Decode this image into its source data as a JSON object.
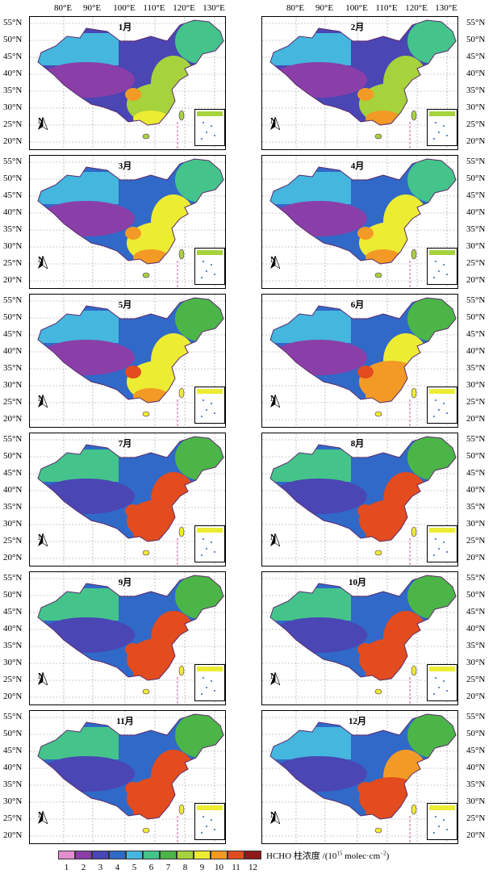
{
  "longitude_labels": [
    "80°E",
    "90°E",
    "100°E",
    "110°E",
    "120°E",
    "130°E"
  ],
  "latitude_labels": [
    "55°N",
    "50°N",
    "45°N",
    "40°N",
    "35°N",
    "30°N",
    "25°N",
    "20°N"
  ],
  "panels": [
    {
      "month": "1月",
      "intensity": 0.35
    },
    {
      "month": "2月",
      "intensity": 0.38
    },
    {
      "month": "3月",
      "intensity": 0.45
    },
    {
      "month": "4月",
      "intensity": 0.45
    },
    {
      "month": "5月",
      "intensity": 0.5
    },
    {
      "month": "6月",
      "intensity": 0.58
    },
    {
      "month": "7月",
      "intensity": 0.78
    },
    {
      "month": "8月",
      "intensity": 0.8
    },
    {
      "month": "9月",
      "intensity": 0.82
    },
    {
      "month": "10月",
      "intensity": 0.8
    },
    {
      "month": "11月",
      "intensity": 0.75
    },
    {
      "month": "12月",
      "intensity": 0.72
    }
  ],
  "north_label": "N",
  "legend": {
    "title": "HCHO 柱浓度 /(10",
    "title_sup": "15",
    "title_unit": " molec·cm",
    "title_sup2": "−2",
    "title_end": ")",
    "ticks": [
      "1",
      "2",
      "3",
      "4",
      "5",
      "6",
      "7",
      "8",
      "9",
      "10",
      "11",
      "12"
    ],
    "colors": [
      "#e38fcf",
      "#8a3fa8",
      "#4a46b4",
      "#3069c8",
      "#45b6de",
      "#44c48b",
      "#4cb548",
      "#a6d23c",
      "#ecec33",
      "#f39a26",
      "#e24c1e",
      "#8e1a1a"
    ]
  }
}
